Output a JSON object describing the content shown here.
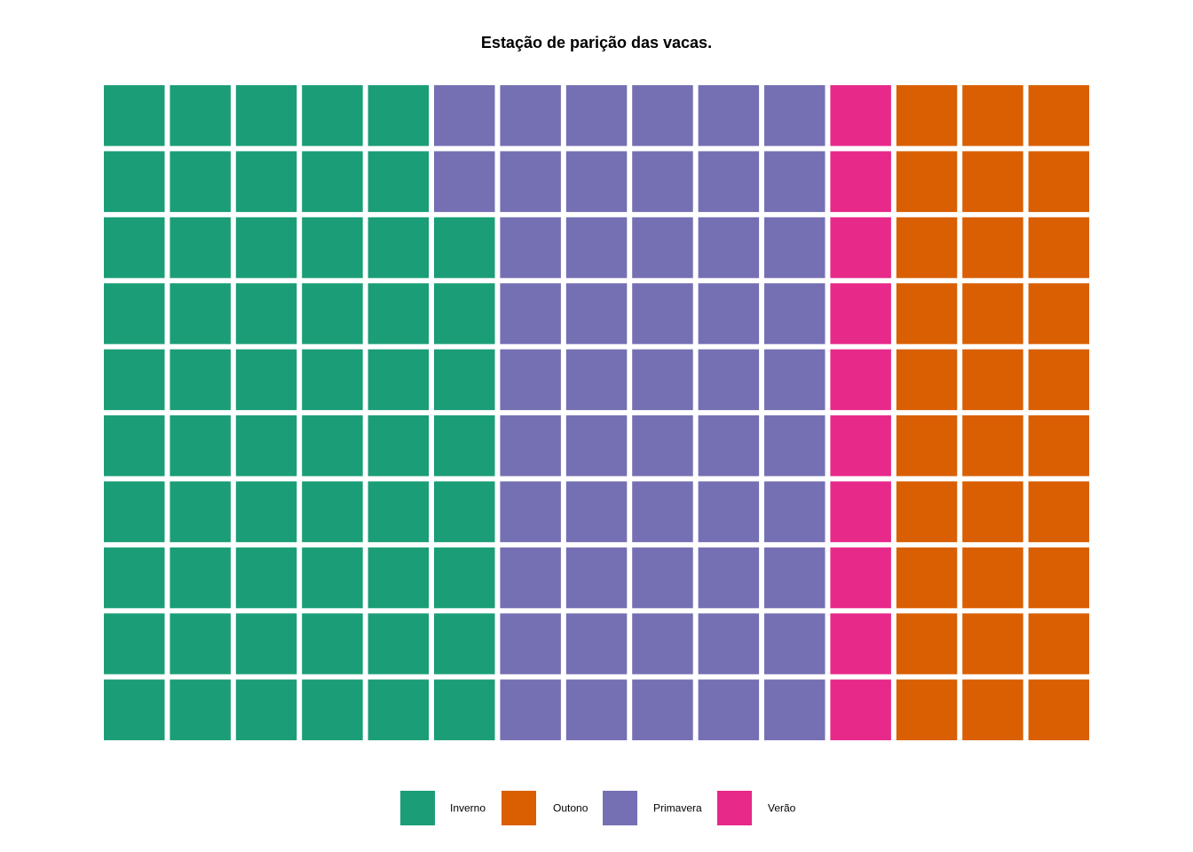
{
  "chart_data": {
    "type": "waffle",
    "title": "Estação de parição das vacas.",
    "grid": {
      "rows": 10,
      "cols": 15,
      "fill_order": "column-major-bottom-up"
    },
    "categories": [
      "Inverno",
      "Primavera",
      "Verão",
      "Outono"
    ],
    "values": [
      58,
      52,
      10,
      30
    ],
    "colors": {
      "Inverno": "#1B9E77",
      "Primavera": "#7570B3",
      "Verão": "#E7298A",
      "Outono": "#D95F02"
    },
    "legend": {
      "placement": "bottom",
      "entries": [
        "Inverno",
        "Outono",
        "Primavera",
        "Verão"
      ]
    }
  }
}
